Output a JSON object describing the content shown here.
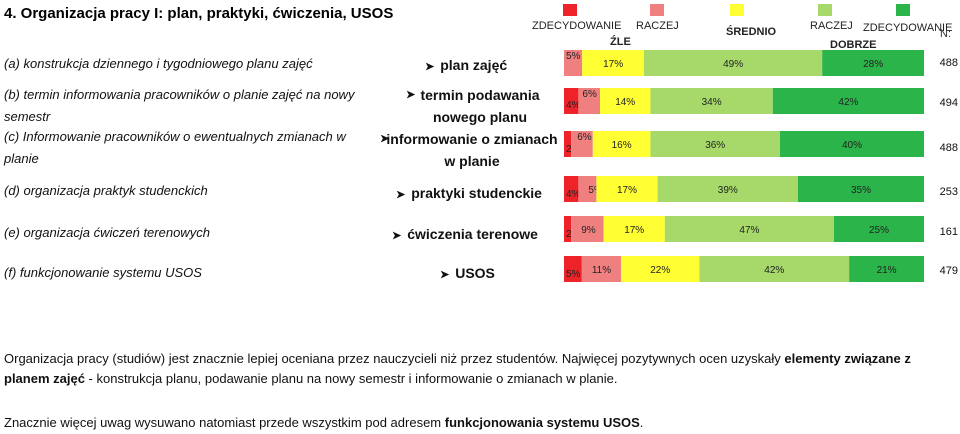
{
  "title": "4. Organizacja pracy I: plan, praktyki, ćwiczenia, USOS",
  "scale": {
    "labels": [
      "ZDECYDOWANIE",
      "RACZEJ",
      "ŚREDNIO",
      "RACZEJ",
      "ZDECYDOWANIE"
    ],
    "sub_labels": [
      "ŹLE",
      "DOBRZE"
    ],
    "colors": [
      "#ee2229",
      "#f08080",
      "#ffff33",
      "#a6d96a",
      "#2bb44a"
    ],
    "n_label": "N:"
  },
  "rows": [
    {
      "label": "(a) konstrukcja dziennego i tygodniowego planu zajęć",
      "short": "plan zajęć"
    },
    {
      "label": "(b) termin informowania pracowników o planie zajęć na nowy semestr",
      "short": "termin podawania nowego planu"
    },
    {
      "label": "(c) Informowanie pracowników o ewentualnych zmianach w planie",
      "short": "informowanie o zmianach w planie"
    },
    {
      "label": "(d) organizacja praktyk studenckich",
      "short": "praktyki studenckie"
    },
    {
      "label": "(e) organizacja ćwiczeń terenowych",
      "short": "ćwiczenia terenowe"
    },
    {
      "label": "(f) funkcjonowanie systemu USOS",
      "short": "USOS"
    }
  ],
  "chart_data": {
    "type": "bar",
    "stacked": true,
    "orientation": "horizontal",
    "categories": [
      "plan zajęć",
      "termin podawania nowego planu",
      "informowanie o zmianach w planie",
      "praktyki studenckie",
      "ćwiczenia terenowe",
      "USOS"
    ],
    "series": [
      {
        "values": [
          0,
          4,
          2,
          4,
          2,
          5
        ]
      },
      {
        "values": [
          5,
          6,
          6,
          5,
          9,
          11
        ]
      },
      {
        "values": [
          17,
          14,
          16,
          17,
          17,
          22
        ]
      },
      {
        "values": [
          49,
          34,
          36,
          39,
          47,
          42
        ]
      },
      {
        "values": [
          28,
          42,
          40,
          35,
          25,
          21
        ]
      }
    ],
    "n": [
      488,
      494,
      488,
      253,
      161,
      479
    ],
    "xlim": [
      0,
      100
    ],
    "value_suffix": "%"
  },
  "summary": {
    "p1_a": "Organizacja pracy (studiów) jest znacznie lepiej oceniana przez nauczycieli niż przez studentów. Najwięcej pozytywnych ocen uzyskały ",
    "p1_b": "elementy związane z planem zajęć",
    "p1_c": " - konstrukcja planu, podawanie planu na nowy semestr i informowanie o zmianach w planie.",
    "p2_a": "Znacznie więcej uwag wysuwano natomiast przede wszystkim pod adresem ",
    "p2_b": "funkcjonowania systemu USOS",
    "p2_c": "."
  }
}
